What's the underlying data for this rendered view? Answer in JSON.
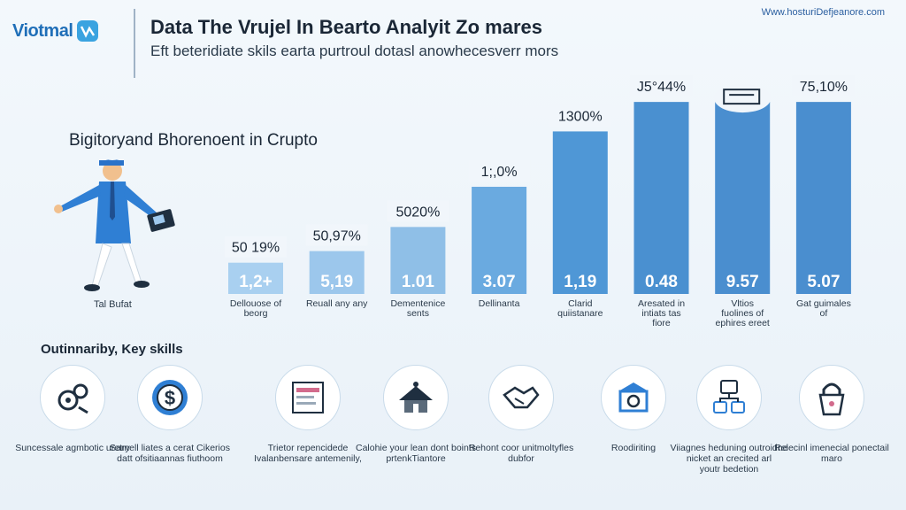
{
  "header": {
    "logo_text": "Viotmal",
    "title": "Data The Vrujel In Bearto Analyit Zo mares",
    "subtitle": "Eft beteridiate skils earta purtroul dotasl anowhecesverr mors",
    "site_url": "Www.hosturiDefjeanore.com"
  },
  "section_heading": "Bigitoryand Bhorenoent in Crupto",
  "figure_label": "Tal Bufat",
  "chart_data": {
    "type": "bar",
    "title": "Bigitoryand Bhorenoent in Crupto",
    "categories": [
      "Dellouose of beorg",
      "Reuall any any",
      "Dementenice sents",
      "Dellinanta",
      "Clarid quiistanare",
      "Aresated in intiats tas fiore",
      "Vltios fuolines of ephires ereet",
      "Gat guimales of"
    ],
    "top_labels": [
      "50 19%",
      "50,97%",
      "5020%",
      "1;,0%",
      "1300%",
      "J5°44%",
      "",
      "75,10%"
    ],
    "inner_labels": [
      "1,2+",
      "5,19",
      "1.01",
      "3.07",
      "1,19",
      "0.48",
      "9.57",
      "5.07"
    ],
    "values": [
      35,
      48,
      75,
      120,
      182,
      215,
      215,
      215
    ],
    "ylim": [
      0,
      230
    ],
    "colors": [
      "#a9d0f0",
      "#9cc7ec",
      "#8fbfe7",
      "#6aaae0",
      "#4f97d6",
      "#4a90d0",
      "#4a8ecf",
      "#4a8ecf"
    ]
  },
  "skills": {
    "heading": "Outinnariby, Key skills",
    "items": [
      {
        "icon": "gears-icon",
        "label": "Suncessale agmbotic uretry"
      },
      {
        "icon": "dollar-icon",
        "label": "Sarnell liates a cerat Cikerios\ndatt ofsitiaannas fiuthoom"
      },
      {
        "icon": "document-icon",
        "label": "Trietor repencidede Ivalanbensare antemenily,"
      },
      {
        "icon": "building-icon",
        "label": "Calohie your lean dont boints\nprtenkTiantore"
      },
      {
        "icon": "handshake-icon",
        "label": "Rehont coor unitmoltyfles dubfor"
      },
      {
        "icon": "bank-icon",
        "label": "Roodiriting"
      },
      {
        "icon": "network-icon",
        "label": "Viiagnes heduning outroidne\nnicket an crecited arl\nyoutr bedetion"
      },
      {
        "icon": "lock-icon",
        "label": "Relecinl imenecial ponectail maro"
      }
    ]
  }
}
